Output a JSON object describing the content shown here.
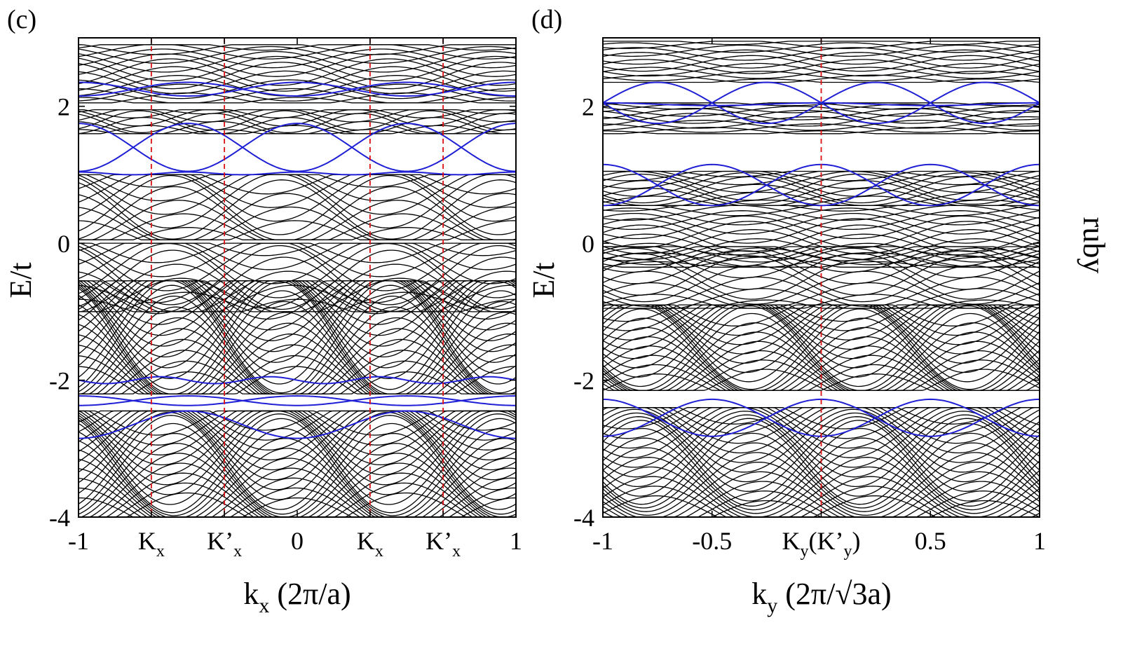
{
  "side_label": "ruby",
  "colors": {
    "bulk": "#000000",
    "edge": "#1f1fd6",
    "marker": "#e01010"
  },
  "chart_data": [
    {
      "panel_label": "(c)",
      "type": "line",
      "xlabel_main": "k",
      "xlabel_sub": "x",
      "xlabel_unit": " (2π/a)",
      "ylabel": "E/t",
      "xlim": [
        -1,
        1
      ],
      "ylim": [
        -4,
        3
      ],
      "yticks": [
        2,
        0,
        -2,
        -4
      ],
      "xticks": [
        {
          "x": -1,
          "main": "-1",
          "sub": ""
        },
        {
          "x": -0.667,
          "main": "K",
          "sub": "x"
        },
        {
          "x": -0.333,
          "main": "K’",
          "sub": "x"
        },
        {
          "x": 0,
          "main": "0",
          "sub": ""
        },
        {
          "x": 0.333,
          "main": "K",
          "sub": "x"
        },
        {
          "x": 0.667,
          "main": "K’",
          "sub": "x"
        },
        {
          "x": 1,
          "main": "1",
          "sub": ""
        }
      ],
      "markers_x": [
        -0.667,
        -0.333,
        0.333,
        0.667
      ],
      "bulk_bands": [
        {
          "lo": 2.05,
          "hi": 2.9,
          "n": 18,
          "amp": 0.2,
          "period": 1.0,
          "phase": 0
        },
        {
          "lo": 1.6,
          "hi": 1.95,
          "n": 10,
          "amp": 0.15,
          "period": 0.666,
          "phase": 0.5
        },
        {
          "lo": 0.05,
          "hi": 1.0,
          "n": 16,
          "amp": 0.45,
          "period": 1.0,
          "phase": 0.5
        },
        {
          "lo": -1.0,
          "hi": 0.0,
          "n": 16,
          "amp": 0.45,
          "period": 1.0,
          "phase": 0
        },
        {
          "lo": -2.2,
          "hi": -0.55,
          "n": 34,
          "amp": 0.8,
          "period": 1.0,
          "phase": 0.5
        },
        {
          "lo": -4.0,
          "hi": -2.45,
          "n": 34,
          "amp": 0.7,
          "period": 1.0,
          "phase": 0
        }
      ],
      "edge_states": [
        {
          "center": 2.25,
          "amp": 0.1,
          "period": 1.0,
          "phase": 0
        },
        {
          "center": 2.25,
          "amp": 0.1,
          "period": 1.0,
          "phase": 0.5
        },
        {
          "center": 1.4,
          "amp": 0.35,
          "period": 1.0,
          "phase": 0.5
        },
        {
          "center": 1.4,
          "amp": 0.35,
          "period": 1.0,
          "phase": 0
        },
        {
          "center": 1.02,
          "amp": 0.02,
          "period": 0.5,
          "phase": 0
        },
        {
          "center": -2.0,
          "amp": 0.05,
          "period": 0.5,
          "phase": 0.25
        },
        {
          "center": -2.3,
          "amp": 0.07,
          "period": 1.0,
          "phase": 0
        },
        {
          "center": -2.3,
          "amp": 0.07,
          "period": 1.0,
          "phase": 0.5
        },
        {
          "center": -2.65,
          "amp": 0.2,
          "period": 1.0,
          "phase": 0.5
        }
      ]
    },
    {
      "panel_label": "(d)",
      "type": "line",
      "xlabel_main": "k",
      "xlabel_sub": "y",
      "xlabel_unit": " (2π/√3a)",
      "ylabel": "E/t",
      "xlim": [
        -1,
        1
      ],
      "ylim": [
        -4,
        3
      ],
      "yticks": [
        2,
        0,
        -2,
        -4
      ],
      "xticks": [
        {
          "x": -1,
          "main": "-1",
          "sub": ""
        },
        {
          "x": -0.5,
          "main": "-0.5",
          "sub": ""
        },
        {
          "x": 0,
          "main": "K",
          "sub": "y",
          "tail": "(K’",
          "tail_sub": "y",
          "end": ")"
        },
        {
          "x": 0.5,
          "main": "0.5",
          "sub": ""
        },
        {
          "x": 1,
          "main": "1",
          "sub": ""
        }
      ],
      "markers_x": [
        0
      ],
      "bulk_bands": [
        {
          "lo": 2.35,
          "hi": 2.95,
          "n": 14,
          "amp": 0.12,
          "period": 1.0,
          "phase": 0.25
        },
        {
          "lo": 1.6,
          "hi": 2.05,
          "n": 12,
          "amp": 0.1,
          "period": 1.0,
          "phase": 0
        },
        {
          "lo": 0.55,
          "hi": 1.05,
          "n": 14,
          "amp": 0.2,
          "period": 1.0,
          "phase": 0.25
        },
        {
          "lo": -0.35,
          "hi": 0.55,
          "n": 18,
          "amp": 0.2,
          "period": 1.0,
          "phase": 0.75
        },
        {
          "lo": -0.95,
          "hi": -0.05,
          "n": 16,
          "amp": 0.3,
          "period": 1.0,
          "phase": 0.25
        },
        {
          "lo": -2.15,
          "hi": -0.9,
          "n": 30,
          "amp": 0.6,
          "period": 1.0,
          "phase": 0.75
        },
        {
          "lo": -4.0,
          "hi": -2.4,
          "n": 34,
          "amp": 0.6,
          "period": 1.0,
          "phase": 0.25
        }
      ],
      "edge_states": [
        {
          "center": 2.05,
          "amp": 0.3,
          "period": 1.0,
          "phase": 0.25
        },
        {
          "center": 2.05,
          "amp": 0.3,
          "period": 1.0,
          "phase": 0.75
        },
        {
          "center": 2.03,
          "amp": 0.02,
          "period": 1.0,
          "phase": 0
        },
        {
          "center": 0.85,
          "amp": 0.3,
          "period": 1.0,
          "phase": 0.5
        },
        {
          "center": 0.85,
          "amp": 0.3,
          "period": 1.0,
          "phase": 0
        },
        {
          "center": -2.55,
          "amp": 0.27,
          "period": 1.0,
          "phase": 0
        },
        {
          "center": -2.55,
          "amp": 0.27,
          "period": 1.0,
          "phase": 0.5
        }
      ]
    }
  ]
}
